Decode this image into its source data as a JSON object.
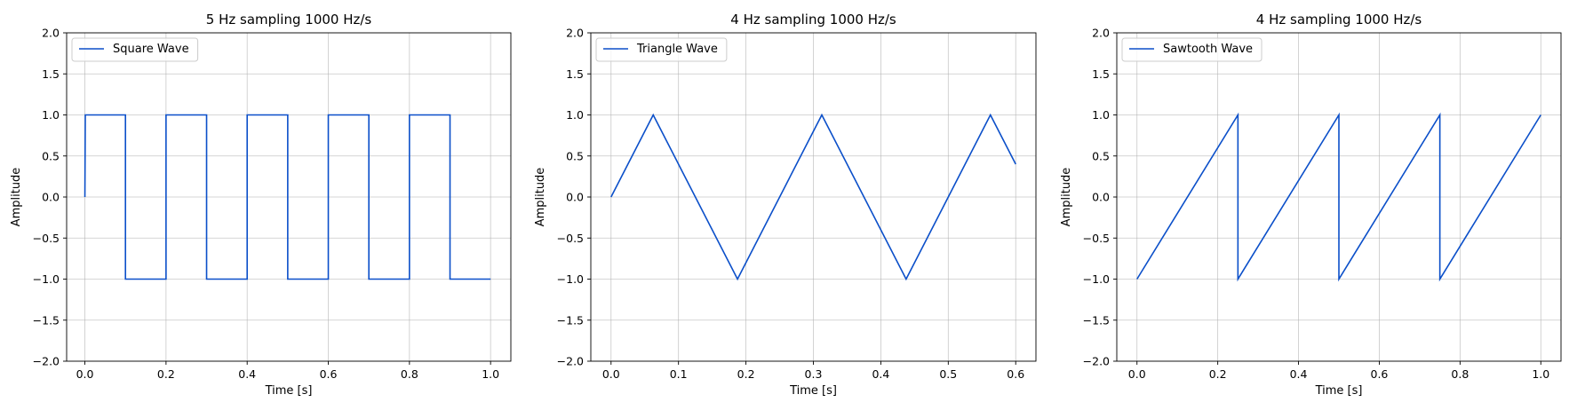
{
  "line_color": "#0b4fc9",
  "chart_data": [
    {
      "type": "line",
      "title": "5 Hz sampling 1000 Hz/s",
      "xlabel": "Time [s]",
      "ylabel": "Amplitude",
      "xlim": [
        -0.045,
        1.05
      ],
      "ylim": [
        -2.0,
        2.0
      ],
      "xticks": [
        0.0,
        0.2,
        0.4,
        0.6,
        0.8,
        1.0
      ],
      "xtick_labels": [
        "0.0",
        "0.2",
        "0.4",
        "0.6",
        "0.8",
        "1.0"
      ],
      "yticks": [
        -2.0,
        -1.5,
        -1.0,
        -0.5,
        0.0,
        0.5,
        1.0,
        1.5,
        2.0
      ],
      "ytick_labels": [
        "−2.0",
        "−1.5",
        "−1.0",
        "−0.5",
        "0.0",
        "0.5",
        "1.0",
        "1.5",
        "2.0"
      ],
      "grid": true,
      "legend_position": "top-left",
      "series": [
        {
          "name": "Square Wave",
          "x": [
            0.0,
            0.001,
            0.1,
            0.1,
            0.2,
            0.2,
            0.3,
            0.3,
            0.4,
            0.4,
            0.5,
            0.5,
            0.6,
            0.6,
            0.7,
            0.7,
            0.8,
            0.8,
            0.9,
            0.9,
            1.0
          ],
          "y": [
            0.0,
            1.0,
            1.0,
            -1.0,
            -1.0,
            1.0,
            1.0,
            -1.0,
            -1.0,
            1.0,
            1.0,
            -1.0,
            -1.0,
            1.0,
            1.0,
            -1.0,
            -1.0,
            1.0,
            1.0,
            -1.0,
            -1.0
          ]
        }
      ]
    },
    {
      "type": "line",
      "title": "4 Hz sampling 1000 Hz/s",
      "xlabel": "Time [s]",
      "ylabel": "Amplitude",
      "xlim": [
        -0.03,
        0.63
      ],
      "ylim": [
        -2.0,
        2.0
      ],
      "xticks": [
        0.0,
        0.1,
        0.2,
        0.3,
        0.4,
        0.5,
        0.6
      ],
      "xtick_labels": [
        "0.0",
        "0.1",
        "0.2",
        "0.3",
        "0.4",
        "0.5",
        "0.6"
      ],
      "yticks": [
        -2.0,
        -1.5,
        -1.0,
        -0.5,
        0.0,
        0.5,
        1.0,
        1.5,
        2.0
      ],
      "ytick_labels": [
        "−2.0",
        "−1.5",
        "−1.0",
        "−0.5",
        "0.0",
        "0.5",
        "1.0",
        "1.5",
        "2.0"
      ],
      "grid": true,
      "legend_position": "top-left",
      "series": [
        {
          "name": "Triangle Wave",
          "x": [
            0.0,
            0.0625,
            0.1875,
            0.3125,
            0.4375,
            0.5625,
            0.6
          ],
          "y": [
            0.0,
            1.0,
            -1.0,
            1.0,
            -1.0,
            1.0,
            0.4
          ]
        }
      ]
    },
    {
      "type": "line",
      "title": "4 Hz sampling 1000 Hz/s",
      "xlabel": "Time [s]",
      "ylabel": "Amplitude",
      "xlim": [
        -0.05,
        1.05
      ],
      "ylim": [
        -2.0,
        2.0
      ],
      "xticks": [
        0.0,
        0.2,
        0.4,
        0.6,
        0.8,
        1.0
      ],
      "xtick_labels": [
        "0.0",
        "0.2",
        "0.4",
        "0.6",
        "0.8",
        "1.0"
      ],
      "yticks": [
        -2.0,
        -1.5,
        -1.0,
        -0.5,
        0.0,
        0.5,
        1.0,
        1.5,
        2.0
      ],
      "ytick_labels": [
        "−2.0",
        "−1.5",
        "−1.0",
        "−0.5",
        "0.0",
        "0.5",
        "1.0",
        "1.5",
        "2.0"
      ],
      "grid": true,
      "legend_position": "top-left",
      "series": [
        {
          "name": "Sawtooth Wave",
          "x": [
            0.0,
            0.25,
            0.25,
            0.5,
            0.5,
            0.75,
            0.75,
            1.0
          ],
          "y": [
            -1.0,
            1.0,
            -1.0,
            1.0,
            -1.0,
            1.0,
            -1.0,
            1.0
          ]
        }
      ]
    }
  ]
}
